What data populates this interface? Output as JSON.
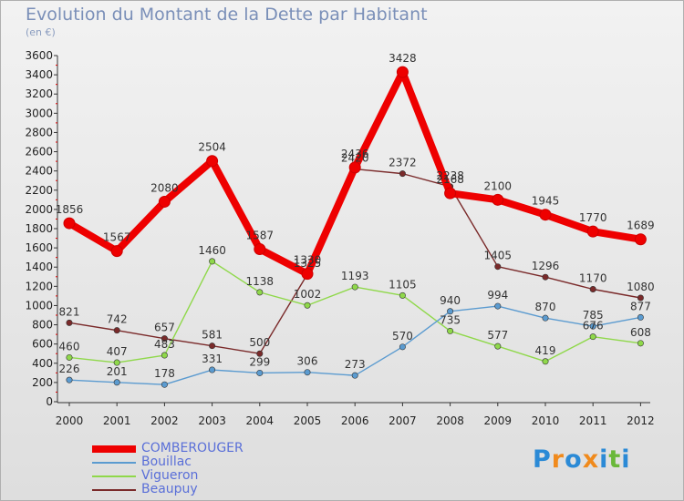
{
  "header": {
    "title": "Evolution du Montant de la Dette par Habitant",
    "subtitle": "(en €)"
  },
  "brand": {
    "text": "Proxiti",
    "letters": [
      {
        "ch": "P",
        "color": "#2b8ad6"
      },
      {
        "ch": "r",
        "color": "#f08a1c"
      },
      {
        "ch": "o",
        "color": "#2b8ad6"
      },
      {
        "ch": "x",
        "color": "#f08a1c"
      },
      {
        "ch": "i",
        "color": "#2b8ad6"
      },
      {
        "ch": "t",
        "color": "#6ab83a"
      },
      {
        "ch": "i",
        "color": "#2b8ad6"
      }
    ]
  },
  "chart_data": {
    "type": "line",
    "title": "Evolution du Montant de la Dette par Habitant",
    "subtitle": "(en €)",
    "x": [
      "2000",
      "2001",
      "2002",
      "2003",
      "2004",
      "2005",
      "2006",
      "2007",
      "2008",
      "2009",
      "2010",
      "2011",
      "2012"
    ],
    "ylim": [
      0,
      3600
    ],
    "yticks": [
      0,
      200,
      400,
      600,
      800,
      1000,
      1200,
      1400,
      1600,
      1800,
      2000,
      2200,
      2400,
      2600,
      2800,
      3000,
      3200,
      3400,
      3600
    ],
    "grid": false,
    "legend_position": "bottom-left",
    "series": [
      {
        "name": "COMBEROUGER",
        "color": "#ee0000",
        "values": [
          1856,
          1567,
          2080,
          2504,
          1587,
          1330,
          2436,
          3428,
          2168,
          2100,
          1945,
          1770,
          1689
        ],
        "labels": [
          "1856",
          "1567",
          "2080",
          "2504",
          "1587",
          "1330",
          "2436",
          "3428",
          "2168",
          "2100",
          "1945",
          "1770",
          "1689"
        ]
      },
      {
        "name": "Bouillac",
        "color": "#5b9bd0",
        "values": [
          226,
          201,
          178,
          331,
          299,
          306,
          273,
          570,
          940,
          994,
          870,
          785,
          877
        ],
        "labels": [
          "226",
          "201",
          "178",
          "331",
          "299",
          "306",
          "273",
          "570",
          "940",
          "994",
          "870",
          "785",
          "877"
        ]
      },
      {
        "name": "Vigueron",
        "color": "#8fd84a",
        "values": [
          460,
          407,
          483,
          1460,
          1138,
          1002,
          1193,
          1105,
          735,
          577,
          419,
          676,
          608
        ],
        "labels": [
          "460",
          "407",
          "483",
          "1460",
          "1138",
          "1002",
          "1193",
          "1105",
          "735",
          "577",
          "419",
          "676",
          "608"
        ]
      },
      {
        "name": "Beaupuy",
        "color": "#7a2a2a",
        "values": [
          821,
          742,
          657,
          581,
          500,
          1325,
          2420,
          2372,
          2238,
          1405,
          1296,
          1170,
          1080
        ],
        "labels": [
          "821",
          "742",
          "657",
          "581",
          "500",
          "1325",
          "2420",
          "2372",
          "2238",
          "1405",
          "1296",
          "1170",
          "1080"
        ]
      }
    ]
  }
}
